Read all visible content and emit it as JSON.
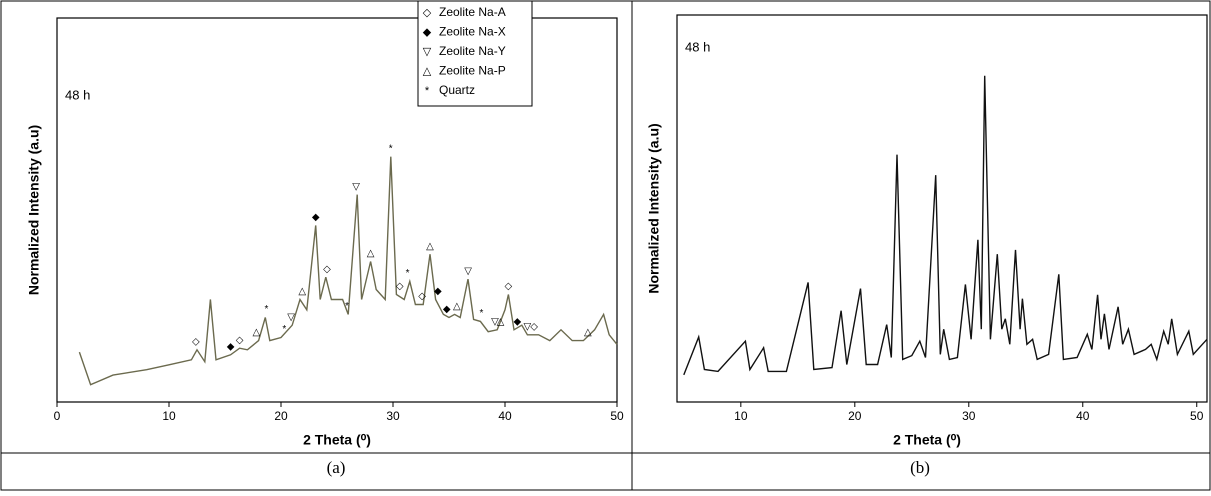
{
  "chart_data": [
    {
      "type": "line",
      "x_label": "2 Theta (⁰)",
      "y_label": "Normalized Intensity (a.u)",
      "annotation": "48 h",
      "xlim": [
        0,
        50
      ],
      "xticks": [
        0,
        10,
        20,
        30,
        40,
        50
      ],
      "ylim": [
        0,
        100
      ],
      "x": [
        2,
        3,
        5,
        8,
        10,
        12,
        12.5,
        13.2,
        13.7,
        14.2,
        15.5,
        16.3,
        17,
        18,
        18.6,
        19,
        20,
        21,
        21.7,
        22.3,
        23.1,
        23.5,
        24,
        24.5,
        25.5,
        26,
        26.8,
        27.2,
        28,
        28.5,
        29.3,
        29.8,
        30.3,
        31,
        31.5,
        32,
        32.7,
        33.3,
        33.8,
        34.5,
        35,
        35.5,
        36,
        36.7,
        37.2,
        37.8,
        38.5,
        39.3,
        40,
        40.3,
        40.8,
        41.5,
        42,
        43,
        44,
        45,
        46,
        47,
        48,
        48.8,
        49.3,
        50
      ],
      "series": [
        {
          "color": "#6b6a4e",
          "values": [
            13,
            4.5,
            7,
            8.4,
            9.7,
            11,
            13.6,
            10.5,
            26.7,
            11,
            12.3,
            14,
            13.6,
            16,
            22,
            16,
            16.8,
            20,
            26.7,
            24,
            46,
            26.7,
            32.5,
            26.7,
            26.7,
            22.8,
            54,
            26.7,
            36.6,
            29.3,
            26.7,
            63.9,
            28,
            26.7,
            31.4,
            25.4,
            25.4,
            38.5,
            26.7,
            22.8,
            22,
            22.8,
            22,
            32,
            21.5,
            21,
            18.3,
            18.8,
            24,
            28,
            18.8,
            20,
            17.5,
            17.5,
            16,
            18.8,
            16,
            16,
            18.8,
            22.8,
            17.5,
            15
          ]
        }
      ],
      "legend": [
        {
          "symbol": "◇",
          "name": "Zeolite Na-A"
        },
        {
          "symbol": "◆",
          "name": "Zeolite Na-X"
        },
        {
          "symbol": "▽",
          "name": "Zeolite Na-Y"
        },
        {
          "symbol": "△",
          "name": "Zeolite Na-P"
        },
        {
          "symbol": "*",
          "name": "Quartz"
        }
      ],
      "peak_markers": [
        {
          "x": 12.4,
          "text": "◇"
        },
        {
          "x": 15.5,
          "text": "◆"
        },
        {
          "x": 16.3,
          "text": "◇"
        },
        {
          "x": 17.8,
          "text": "△"
        },
        {
          "x": 18.7,
          "text": "*"
        },
        {
          "x": 20.3,
          "text": "*"
        },
        {
          "x": 20.9,
          "text": "▽"
        },
        {
          "x": 21.9,
          "text": "△"
        },
        {
          "x": 23.1,
          "text": "◆"
        },
        {
          "x": 24.1,
          "text": "◇"
        },
        {
          "x": 25.9,
          "text": "*"
        },
        {
          "x": 26.7,
          "text": "▽"
        },
        {
          "x": 28.0,
          "text": "△"
        },
        {
          "x": 29.8,
          "text": "*"
        },
        {
          "x": 30.6,
          "text": "◇"
        },
        {
          "x": 31.3,
          "text": "*"
        },
        {
          "x": 32.6,
          "text": "◇"
        },
        {
          "x": 33.3,
          "text": "△"
        },
        {
          "x": 34.0,
          "text": "◆"
        },
        {
          "x": 34.8,
          "text": "◆"
        },
        {
          "x": 35.7,
          "text": "△"
        },
        {
          "x": 36.7,
          "text": "▽"
        },
        {
          "x": 37.9,
          "text": "*"
        },
        {
          "x": 39.1,
          "text": "▽"
        },
        {
          "x": 39.6,
          "text": "△"
        },
        {
          "x": 40.3,
          "text": "◇"
        },
        {
          "x": 41.1,
          "text": "◆"
        },
        {
          "x": 42.0,
          "text": "▽"
        },
        {
          "x": 42.6,
          "text": "◇"
        },
        {
          "x": 47.4,
          "text": "△"
        }
      ]
    },
    {
      "type": "line",
      "x_label": "2 Theta (⁰)",
      "y_label": "Normalized Intensity (a.u)",
      "annotation": "48 h",
      "xlim": [
        4.4,
        50.9
      ],
      "xticks": [
        10,
        20,
        30,
        40,
        50
      ],
      "ylim": [
        0,
        100
      ],
      "x": [
        5,
        6.3,
        6.8,
        8,
        10.4,
        10.8,
        12,
        12.4,
        14,
        15.9,
        16.4,
        18,
        18.8,
        19.3,
        20.5,
        21,
        22,
        22.8,
        23.2,
        23.7,
        24.2,
        25,
        25.7,
        26.2,
        27.1,
        27.5,
        27.8,
        28.3,
        29,
        29.7,
        30.2,
        30.8,
        31.1,
        31.4,
        31.9,
        32.5,
        32.9,
        33.2,
        33.6,
        34.1,
        34.5,
        34.7,
        35.1,
        35.6,
        36,
        37,
        37.9,
        38.3,
        39.5,
        40.4,
        40.8,
        41.3,
        41.6,
        41.9,
        42.3,
        43.1,
        43.5,
        44,
        44.5,
        45.5,
        46,
        46.5,
        47.1,
        47.5,
        47.8,
        48.3,
        49.3,
        49.7,
        50.5,
        50.9
      ],
      "series": [
        {
          "color": "#111111",
          "values": [
            7,
            16.8,
            8.4,
            7.9,
            15.7,
            8.4,
            14,
            7.9,
            7.9,
            30.9,
            8.4,
            8.9,
            23.6,
            9.7,
            29.3,
            9.7,
            9.7,
            20,
            11.5,
            63.9,
            11,
            12,
            15.7,
            11.5,
            58.6,
            12.3,
            18.8,
            11,
            11.5,
            30.4,
            16.2,
            41.9,
            18.8,
            84.3,
            16.2,
            38.2,
            18.8,
            21.5,
            14.9,
            39.3,
            18.8,
            26.7,
            14.9,
            16.2,
            11,
            12.3,
            33,
            11,
            11.5,
            17.5,
            13.6,
            27.7,
            16.2,
            22.8,
            13.6,
            24.6,
            14.9,
            18.8,
            12.3,
            13.6,
            14.9,
            11,
            18.3,
            14.9,
            21.5,
            12.3,
            18.3,
            12.3,
            14.9,
            16.2
          ]
        }
      ]
    }
  ],
  "captions": [
    "(a)",
    "(b)"
  ]
}
